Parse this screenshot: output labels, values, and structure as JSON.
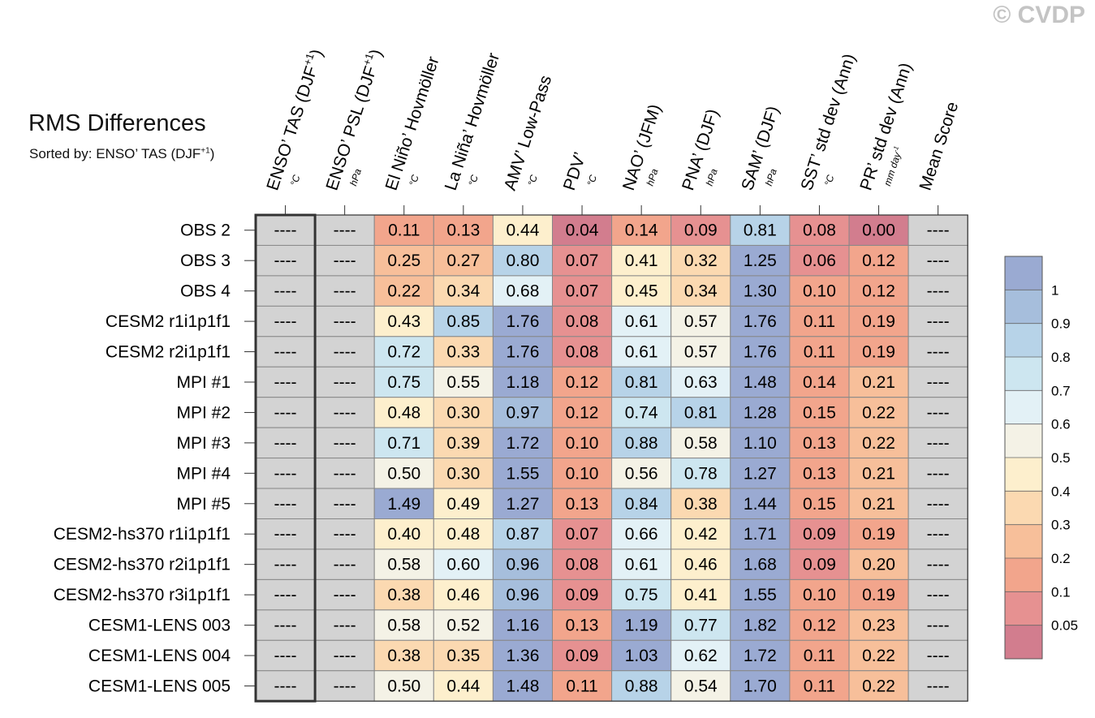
{
  "watermark": "© CVDP",
  "title": "RMS Differences",
  "subtitle_prefix": "Sorted by: ENSO’ TAS (DJF",
  "subtitle_sup": "+1",
  "subtitle_suffix": ")",
  "missing_text": "----",
  "colors": {
    "missing": "#d3d3d3",
    "grid": "#888888",
    "border": "#333333",
    "scale": [
      "#d27d8e",
      "#e69191",
      "#f2a58c",
      "#f7bf9a",
      "#fbd9b1",
      "#fdefcd",
      "#f4f2e6",
      "#e3f1f6",
      "#cde6f0",
      "#b7d3e8",
      "#a6bedc",
      "#9aaad2"
    ]
  },
  "chart_data": {
    "type": "heatmap",
    "title": "RMS Differences",
    "subtitle": "Sorted by: ENSO’ TAS (DJF+1)",
    "columns": [
      {
        "label": "ENSO’ TAS (DJF",
        "sup": "+1",
        "tail": ")",
        "unit": "°C"
      },
      {
        "label": "ENSO’ PSL (DJF",
        "sup": "+1",
        "tail": ")",
        "unit": "hPa"
      },
      {
        "label": "El Niño’ Hovmöller",
        "unit": "°C"
      },
      {
        "label": "La Niña’ Hovmöller",
        "unit": "°C"
      },
      {
        "label": "AMV’ Low-Pass",
        "unit": "°C"
      },
      {
        "label": "PDV’",
        "unit": "°C"
      },
      {
        "label": "NAO’ (JFM)",
        "unit": "hPa"
      },
      {
        "label": "PNA’ (DJF)",
        "unit": "hPa"
      },
      {
        "label": "SAM’ (DJF)",
        "unit": "hPa"
      },
      {
        "label": "SST’ std dev (Ann)",
        "unit": "°C"
      },
      {
        "label": "PR’ std dev (Ann)",
        "unit": "mm day",
        "unit_sup": "-1"
      },
      {
        "label": "Mean Score",
        "unit": ""
      }
    ],
    "rows": [
      {
        "label": "OBS 2",
        "values": [
          null,
          null,
          0.11,
          0.13,
          0.44,
          0.04,
          0.14,
          0.09,
          0.81,
          0.08,
          0.0,
          null
        ]
      },
      {
        "label": "OBS 3",
        "values": [
          null,
          null,
          0.25,
          0.27,
          0.8,
          0.07,
          0.41,
          0.32,
          1.25,
          0.06,
          0.12,
          null
        ]
      },
      {
        "label": "OBS 4",
        "values": [
          null,
          null,
          0.22,
          0.34,
          0.68,
          0.07,
          0.45,
          0.34,
          1.3,
          0.1,
          0.12,
          null
        ]
      },
      {
        "label": "CESM2 r1i1p1f1",
        "values": [
          null,
          null,
          0.43,
          0.85,
          1.76,
          0.08,
          0.61,
          0.57,
          1.76,
          0.11,
          0.19,
          null
        ]
      },
      {
        "label": "CESM2 r2i1p1f1",
        "values": [
          null,
          null,
          0.72,
          0.33,
          1.76,
          0.08,
          0.61,
          0.57,
          1.76,
          0.11,
          0.19,
          null
        ]
      },
      {
        "label": "MPI #1",
        "values": [
          null,
          null,
          0.75,
          0.55,
          1.18,
          0.12,
          0.81,
          0.63,
          1.48,
          0.14,
          0.21,
          null
        ]
      },
      {
        "label": "MPI #2",
        "values": [
          null,
          null,
          0.48,
          0.3,
          0.97,
          0.12,
          0.74,
          0.81,
          1.28,
          0.15,
          0.22,
          null
        ]
      },
      {
        "label": "MPI #3",
        "values": [
          null,
          null,
          0.71,
          0.39,
          1.72,
          0.1,
          0.88,
          0.58,
          1.1,
          0.13,
          0.22,
          null
        ]
      },
      {
        "label": "MPI #4",
        "values": [
          null,
          null,
          0.5,
          0.3,
          1.55,
          0.1,
          0.56,
          0.78,
          1.27,
          0.13,
          0.21,
          null
        ]
      },
      {
        "label": "MPI #5",
        "values": [
          null,
          null,
          1.49,
          0.49,
          1.27,
          0.13,
          0.84,
          0.38,
          1.44,
          0.15,
          0.21,
          null
        ]
      },
      {
        "label": "CESM2-hs370 r1i1p1f1",
        "values": [
          null,
          null,
          0.4,
          0.48,
          0.87,
          0.07,
          0.66,
          0.42,
          1.71,
          0.09,
          0.19,
          null
        ]
      },
      {
        "label": "CESM2-hs370 r2i1p1f1",
        "values": [
          null,
          null,
          0.58,
          0.6,
          0.96,
          0.08,
          0.61,
          0.46,
          1.68,
          0.09,
          0.2,
          null
        ]
      },
      {
        "label": "CESM2-hs370 r3i1p1f1",
        "values": [
          null,
          null,
          0.38,
          0.46,
          0.96,
          0.09,
          0.75,
          0.41,
          1.55,
          0.1,
          0.19,
          null
        ]
      },
      {
        "label": "CESM1-LENS 003",
        "values": [
          null,
          null,
          0.58,
          0.52,
          1.16,
          0.13,
          1.19,
          0.77,
          1.82,
          0.12,
          0.23,
          null
        ]
      },
      {
        "label": "CESM1-LENS 004",
        "values": [
          null,
          null,
          0.38,
          0.35,
          1.36,
          0.09,
          1.03,
          0.62,
          1.72,
          0.11,
          0.22,
          null
        ]
      },
      {
        "label": "CESM1-LENS 005",
        "values": [
          null,
          null,
          0.5,
          0.44,
          1.48,
          0.11,
          0.88,
          0.54,
          1.7,
          0.11,
          0.22,
          null
        ]
      }
    ],
    "sorted_column_index": 0,
    "colorbar": {
      "levels": [
        0.05,
        0.1,
        0.2,
        0.3,
        0.4,
        0.5,
        0.6,
        0.7,
        0.8,
        0.9,
        1
      ],
      "labels": [
        "0.05",
        "0.1",
        "0.2",
        "0.3",
        "0.4",
        "0.5",
        "0.6",
        "0.7",
        "0.8",
        "0.9",
        "1"
      ]
    }
  }
}
